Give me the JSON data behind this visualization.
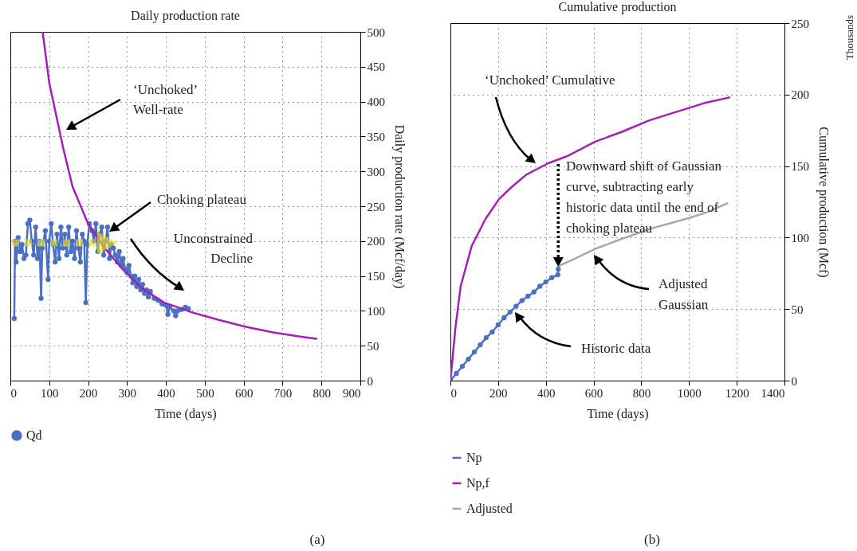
{
  "chart_data": [
    {
      "type": "line",
      "title": "Daily production rate",
      "xlabel": "Time (days)",
      "ylabel": "Daily production rate (Mcf/day)",
      "xlim": [
        0,
        900
      ],
      "xticks": [
        0,
        100,
        200,
        300,
        400,
        500,
        600,
        700,
        800,
        900
      ],
      "ylim": [
        0,
        500
      ],
      "yticks": [
        0,
        50,
        100,
        150,
        200,
        250,
        300,
        350,
        400,
        450,
        500
      ],
      "grid": true,
      "legend": "bottom",
      "series": [
        {
          "name": "Qd",
          "color": "#4a70c4",
          "marker": "circle",
          "x": [
            10,
            12,
            15,
            20,
            25,
            30,
            35,
            40,
            45,
            50,
            55,
            60,
            65,
            70,
            75,
            79,
            82,
            90,
            97,
            100,
            105,
            110,
            115,
            120,
            125,
            130,
            135,
            140,
            145,
            150,
            155,
            160,
            165,
            170,
            175,
            180,
            185,
            190,
            194,
            198,
            203,
            210,
            215,
            220,
            225,
            230,
            235,
            240,
            245,
            250,
            255,
            260,
            265,
            270,
            275,
            280,
            285,
            290,
            295,
            300,
            305,
            310,
            315,
            320,
            325,
            330,
            335,
            340,
            345,
            350,
            355,
            360,
            370,
            380,
            390,
            400,
            405,
            410,
            420,
            425,
            430,
            440,
            450,
            458
          ],
          "values": [
            89,
            200,
            170,
            205,
            185,
            195,
            175,
            180,
            225,
            230,
            200,
            180,
            220,
            175,
            200,
            118,
            190,
            215,
            145,
            200,
            225,
            195,
            170,
            210,
            175,
            220,
            190,
            210,
            180,
            220,
            185,
            200,
            175,
            215,
            190,
            170,
            210,
            200,
            112,
            195,
            225,
            215,
            200,
            225,
            185,
            210,
            220,
            180,
            200,
            220,
            175,
            195,
            190,
            180,
            170,
            185,
            165,
            175,
            160,
            155,
            165,
            150,
            140,
            150,
            135,
            145,
            130,
            138,
            125,
            130,
            120,
            128,
            118,
            115,
            110,
            108,
            95,
            105,
            100,
            93,
            100,
            102,
            105,
            103
          ]
        },
        {
          "color": "#a61fb4",
          "x": [
            83,
            100,
            136,
            160,
            199,
            241,
            290,
            339,
            395,
            466,
            536,
            606,
            676,
            746,
            787
          ],
          "values": [
            500,
            427,
            333,
            278,
            226,
            191,
            159,
            132,
            112,
            98,
            87,
            77,
            69,
            63,
            60
          ]
        }
      ],
      "annotations": [
        "‘Unchoked’\nWell-rate",
        "Choking plateau",
        "Unconstrained\nDecline",
        "(a)"
      ]
    },
    {
      "type": "line",
      "title": "Cumulative production",
      "xlabel": "Time (days)",
      "ylabel": "Cumulative production (Mcf)",
      "xlim": [
        0,
        1400
      ],
      "xticks": [
        0,
        200,
        400,
        600,
        800,
        1000,
        1200,
        1400
      ],
      "ylim": [
        0,
        250
      ],
      "yticks": [
        0,
        50,
        100,
        150,
        200,
        250
      ],
      "grid": true,
      "legend": "bottom",
      "series": [
        {
          "name": "Np",
          "color": "#4a70c4",
          "marker": "circle",
          "x": [
            0,
            25,
            50,
            75,
            100,
            125,
            150,
            175,
            200,
            225,
            250,
            275,
            300,
            325,
            350,
            375,
            400,
            425,
            450,
            452
          ],
          "values": [
            0,
            5,
            10,
            15,
            20,
            25,
            30,
            34,
            39,
            44,
            48,
            52,
            56,
            59,
            62,
            66,
            69,
            72,
            74,
            78
          ]
        },
        {
          "name": "Np,f",
          "color": "#a61fb4",
          "x": [
            0,
            21,
            43,
            89,
            147,
            204,
            261,
            318,
            410,
            490,
            605,
            719,
            834,
            948,
            1063,
            1169
          ],
          "values": [
            0,
            37,
            66,
            94,
            113,
            127,
            136,
            144,
            152,
            157,
            167,
            174,
            182,
            188,
            194,
            198
          ]
        },
        {
          "name": "Adjusted",
          "color": "#a8a8a8",
          "x": [
            452,
            530,
            605,
            700,
            834,
            920,
            1006,
            1080,
            1160
          ],
          "values": [
            80,
            86,
            92,
            98,
            106,
            110,
            114,
            118,
            124
          ]
        }
      ],
      "annotations": [
        "‘Unchoked’ Cumulative",
        {
          "text": "Downward shift of Gaussian\ncurve, subtracting early\nhistoric data until the end of\nchoking plateau",
          "x": 452,
          "y": 78
        },
        "Adjusted\nGaussian",
        "Historic data",
        "Thousands",
        "(b)"
      ]
    }
  ]
}
